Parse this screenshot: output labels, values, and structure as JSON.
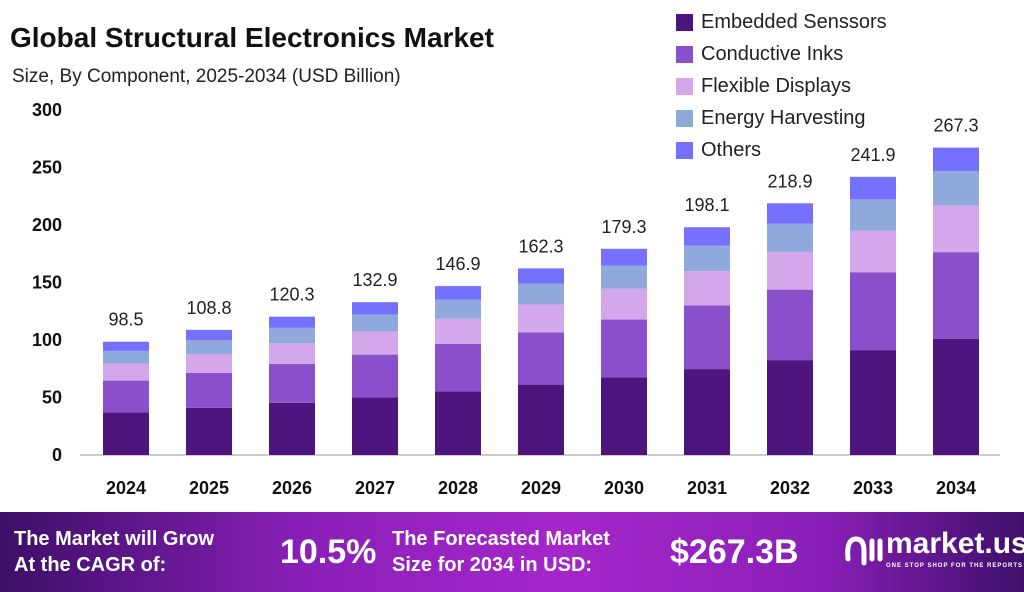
{
  "chart_data": {
    "type": "bar",
    "stacked": true,
    "title": "Global Structural Electronics Market",
    "subtitle": "Size, By Component, 2025-2034 (USD Billion)",
    "categories": [
      "2024",
      "2025",
      "2026",
      "2027",
      "2028",
      "2029",
      "2030",
      "2031",
      "2032",
      "2033",
      "2034"
    ],
    "ylim": [
      0,
      300
    ],
    "yticks": [
      0,
      50,
      100,
      150,
      200,
      250,
      300
    ],
    "grid": false,
    "legend_position": "top-right",
    "totals": [
      98.5,
      108.8,
      120.3,
      132.9,
      146.9,
      162.3,
      179.3,
      198.1,
      218.9,
      241.9,
      267.3
    ],
    "series": [
      {
        "name": "Embedded Senssors",
        "color": "#4e157e",
        "values": [
          37.1,
          41.0,
          45.4,
          50.1,
          55.4,
          61.2,
          67.6,
          74.7,
          82.5,
          91.2,
          100.9
        ]
      },
      {
        "name": "Conductive Inks",
        "color": "#8b4fcb",
        "values": [
          27.6,
          30.5,
          33.7,
          37.2,
          41.1,
          45.4,
          50.2,
          55.5,
          61.3,
          67.7,
          75.5
        ]
      },
      {
        "name": "Flexible Displays",
        "color": "#d4a7ea",
        "values": [
          14.8,
          16.3,
          18.0,
          19.9,
          22.0,
          24.3,
          26.9,
          29.7,
          32.8,
          36.3,
          40.6
        ]
      },
      {
        "name": "Energy Harvesting",
        "color": "#8fa9dc",
        "values": [
          11.0,
          12.2,
          13.5,
          14.9,
          16.5,
          18.2,
          20.1,
          22.2,
          24.5,
          27.1,
          30.0
        ]
      },
      {
        "name": "Others",
        "color": "#7570fd",
        "values": [
          8.0,
          8.8,
          9.7,
          10.8,
          11.9,
          13.2,
          14.5,
          16.0,
          17.8,
          19.6,
          20.3
        ]
      }
    ]
  },
  "footer": {
    "cagr_label_1": "The Market will Grow",
    "cagr_label_2": "At the CAGR of:",
    "cagr_value": "10.5%",
    "forecast_label_1": "The Forecasted Market",
    "forecast_label_2": "Size for 2034 in USD:",
    "forecast_value": "$267.3B",
    "logo_name": "market.us",
    "logo_tagline": "ONE STOP SHOP FOR THE REPORTS"
  }
}
